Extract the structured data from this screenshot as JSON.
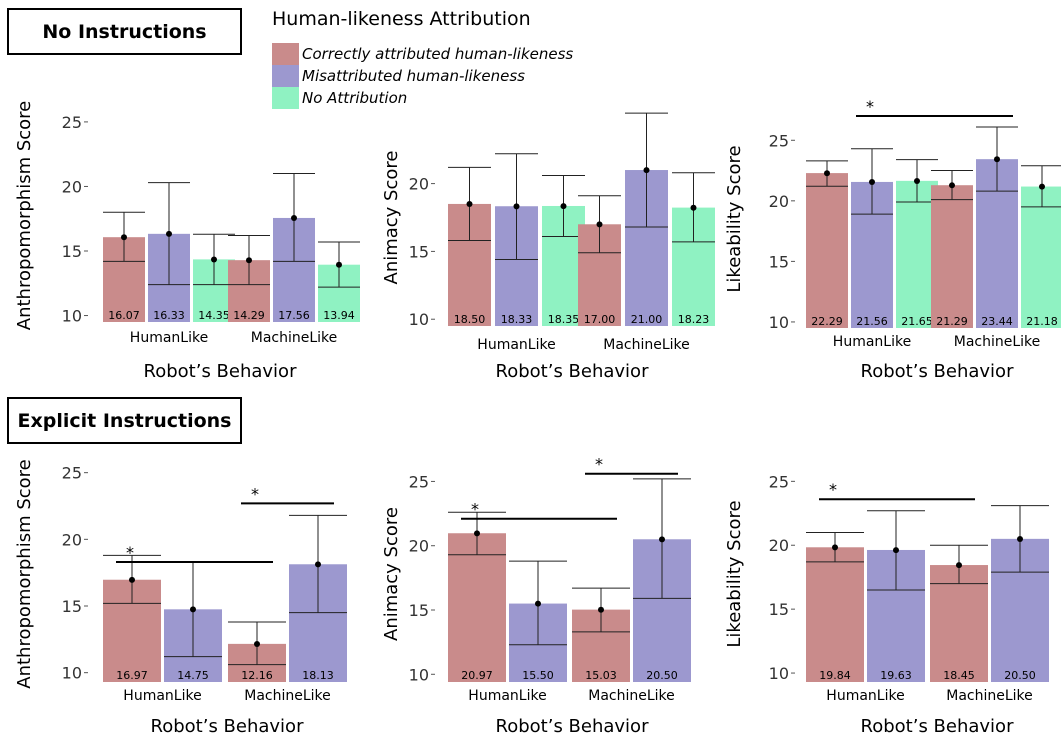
{
  "sections": [
    {
      "title": "No Instructions"
    },
    {
      "title": "Explicit Instructions"
    }
  ],
  "legend": {
    "title": "Human-likeness Attribution",
    "items": [
      {
        "label": "Correctly attributed human-likeness",
        "color": "#c98b8b"
      },
      {
        "label": "Misattributed human-likeness",
        "color": "#9c98cf"
      },
      {
        "label": "No Attribution",
        "color": "#8ff2c2"
      }
    ]
  },
  "chart_data": [
    {
      "type": "bar",
      "section": "No Instructions",
      "xlabel": "Robot’s Behavior",
      "ylabel": "Anthropomorphism Score",
      "ylim": [
        9.5,
        26
      ],
      "yticks": [
        10,
        15,
        20,
        25
      ],
      "categories": [
        "HumanLike",
        "MachineLike"
      ],
      "series": [
        {
          "name": "Correctly attributed human-likeness",
          "values": [
            16.07,
            14.29
          ],
          "values_text": [
            "16.07",
            "14.29"
          ],
          "err_low": [
            14.2,
            12.4
          ],
          "err_high": [
            18.0,
            16.2
          ]
        },
        {
          "name": "Misattributed human-likeness",
          "values": [
            16.33,
            17.56
          ],
          "values_text": [
            "16.33",
            "17.56"
          ],
          "err_low": [
            12.4,
            14.2
          ],
          "err_high": [
            20.3,
            21.0
          ]
        },
        {
          "name": "No Attribution",
          "values": [
            14.35,
            13.94
          ],
          "values_text": [
            "14.35",
            "13.94"
          ],
          "err_low": [
            12.4,
            12.2
          ],
          "err_high": [
            16.3,
            15.7
          ]
        }
      ],
      "significance": []
    },
    {
      "type": "bar",
      "section": "No Instructions",
      "xlabel": "Robot’s Behavior",
      "ylabel": "Animacy Score",
      "ylim": [
        9.5,
        25.5
      ],
      "yticks": [
        10,
        15,
        20
      ],
      "categories": [
        "HumanLike",
        "MachineLike"
      ],
      "series": [
        {
          "name": "Correctly attributed human-likeness",
          "values": [
            18.5,
            17.0
          ],
          "values_text": [
            "18.50",
            "17.00"
          ],
          "err_low": [
            15.8,
            14.9
          ],
          "err_high": [
            21.2,
            19.1
          ]
        },
        {
          "name": "Misattributed human-likeness",
          "values": [
            18.33,
            21.0
          ],
          "values_text": [
            "18.33",
            "21.00"
          ],
          "err_low": [
            14.4,
            16.8
          ],
          "err_high": [
            22.2,
            25.2
          ]
        },
        {
          "name": "No Attribution",
          "values": [
            18.35,
            18.23
          ],
          "values_text": [
            "18.35",
            "18.23"
          ],
          "err_low": [
            16.1,
            15.7
          ],
          "err_high": [
            20.6,
            20.8
          ]
        }
      ],
      "significance": []
    },
    {
      "type": "bar",
      "section": "No Instructions",
      "xlabel": "Robot’s Behavior",
      "ylabel": "Likeability Score",
      "ylim": [
        9.5,
        27.5
      ],
      "yticks": [
        10,
        15,
        20,
        25
      ],
      "categories": [
        "HumanLike",
        "MachineLike"
      ],
      "series": [
        {
          "name": "Correctly attributed human-likeness",
          "values": [
            22.29,
            21.29
          ],
          "values_text": [
            "22.29",
            "21.29"
          ],
          "err_low": [
            21.2,
            20.1
          ],
          "err_high": [
            23.3,
            22.5
          ]
        },
        {
          "name": "Misattributed human-likeness",
          "values": [
            21.56,
            23.44
          ],
          "values_text": [
            "21.56",
            "23.44"
          ],
          "err_low": [
            18.9,
            20.8
          ],
          "err_high": [
            24.3,
            26.1
          ]
        },
        {
          "name": "No Attribution",
          "values": [
            21.65,
            21.18
          ],
          "values_text": [
            "21.65",
            "21.18"
          ],
          "err_low": [
            19.9,
            19.5
          ],
          "err_high": [
            23.4,
            22.9
          ]
        }
      ],
      "significance": [
        {
          "from": [
            0,
            1
          ],
          "to": [
            1,
            1
          ],
          "label": "*",
          "y": 27.0
        }
      ]
    },
    {
      "type": "bar",
      "section": "Explicit Instructions",
      "xlabel": "Robot’s Behavior",
      "ylabel": "Anthropomorphism Score",
      "ylim": [
        9.3,
        25.5
      ],
      "yticks": [
        10,
        15,
        20,
        25
      ],
      "categories": [
        "HumanLike",
        "MachineLike"
      ],
      "series": [
        {
          "name": "Correctly attributed human-likeness",
          "values": [
            16.97,
            12.16
          ],
          "values_text": [
            "16.97",
            "12.16"
          ],
          "err_low": [
            15.2,
            10.6
          ],
          "err_high": [
            18.8,
            13.8
          ]
        },
        {
          "name": "Misattributed human-likeness",
          "values": [
            14.75,
            18.13
          ],
          "values_text": [
            "14.75",
            "18.13"
          ],
          "err_low": [
            11.2,
            14.5
          ],
          "err_high": [
            18.3,
            21.8
          ]
        },
        {
          "name": "No Attribution",
          "values": [
            null,
            null
          ],
          "values_text": [
            "",
            ""
          ],
          "err_low": [
            null,
            null
          ],
          "err_high": [
            null,
            null
          ]
        }
      ],
      "significance": [
        {
          "from": [
            0,
            0
          ],
          "to": [
            1,
            0
          ],
          "label": "*",
          "y": 18.3
        },
        {
          "from": [
            1,
            0
          ],
          "to": [
            1,
            1
          ],
          "label": "*",
          "y": 22.7
        }
      ]
    },
    {
      "type": "bar",
      "section": "Explicit Instructions",
      "xlabel": "Robot’s Behavior",
      "ylabel": "Animacy Score",
      "ylim": [
        9.4,
        26.2
      ],
      "yticks": [
        10,
        15,
        20,
        25
      ],
      "categories": [
        "HumanLike",
        "MachineLike"
      ],
      "series": [
        {
          "name": "Correctly attributed human-likeness",
          "values": [
            20.97,
            15.03
          ],
          "values_text": [
            "20.97",
            "15.03"
          ],
          "err_low": [
            19.3,
            13.3
          ],
          "err_high": [
            22.6,
            16.7
          ]
        },
        {
          "name": "Misattributed human-likeness",
          "values": [
            15.5,
            20.5
          ],
          "values_text": [
            "15.50",
            "20.50"
          ],
          "err_low": [
            12.3,
            15.9
          ],
          "err_high": [
            18.8,
            25.2
          ]
        },
        {
          "name": "No Attribution",
          "values": [
            null,
            null
          ],
          "values_text": [
            "",
            ""
          ],
          "err_low": [
            null,
            null
          ],
          "err_high": [
            null,
            null
          ]
        }
      ],
      "significance": [
        {
          "from": [
            0,
            0
          ],
          "to": [
            1,
            0
          ],
          "label": "*",
          "y": 22.1
        },
        {
          "from": [
            1,
            0
          ],
          "to": [
            1,
            1
          ],
          "label": "*",
          "y": 25.6
        }
      ]
    },
    {
      "type": "bar",
      "section": "Explicit Instructions",
      "xlabel": "Robot’s Behavior",
      "ylabel": "Likeability Score",
      "ylim": [
        9.3,
        26.2
      ],
      "yticks": [
        10,
        15,
        20,
        25
      ],
      "categories": [
        "HumanLike",
        "MachineLike"
      ],
      "series": [
        {
          "name": "Correctly attributed human-likeness",
          "values": [
            19.84,
            18.45
          ],
          "values_text": [
            "19.84",
            "18.45"
          ],
          "err_low": [
            18.7,
            17.0
          ],
          "err_high": [
            21.0,
            20.0
          ]
        },
        {
          "name": "Misattributed human-likeness",
          "values": [
            19.63,
            20.5
          ],
          "values_text": [
            "19.63",
            "20.50"
          ],
          "err_low": [
            16.5,
            17.9
          ],
          "err_high": [
            22.7,
            23.1
          ]
        },
        {
          "name": "No Attribution",
          "values": [
            null,
            null
          ],
          "values_text": [
            "",
            ""
          ],
          "err_low": [
            null,
            null
          ],
          "err_high": [
            null,
            null
          ]
        }
      ],
      "significance": [
        {
          "from": [
            0,
            0
          ],
          "to": [
            1,
            0
          ],
          "label": "*",
          "y": 23.6
        }
      ]
    }
  ]
}
